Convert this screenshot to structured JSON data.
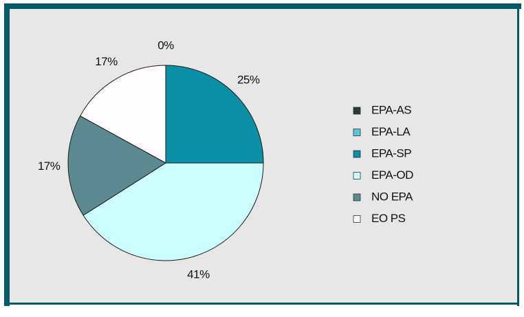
{
  "chart_data": {
    "type": "pie",
    "categories": [
      "EPA-AS",
      "EPA-LA",
      "EPA-SP",
      "EPA-OD",
      "NO EPA",
      "EO PS"
    ],
    "values": [
      0,
      0,
      25,
      41,
      17,
      17
    ],
    "value_labels": [
      "0%",
      null,
      "25%",
      "41%",
      "17%",
      "17%"
    ],
    "colors": [
      "#2b3b3a",
      "#5cc6de",
      "#0b8fa6",
      "#ccfdff",
      "#5b8b90",
      "#fffbff"
    ],
    "legend": "right"
  }
}
